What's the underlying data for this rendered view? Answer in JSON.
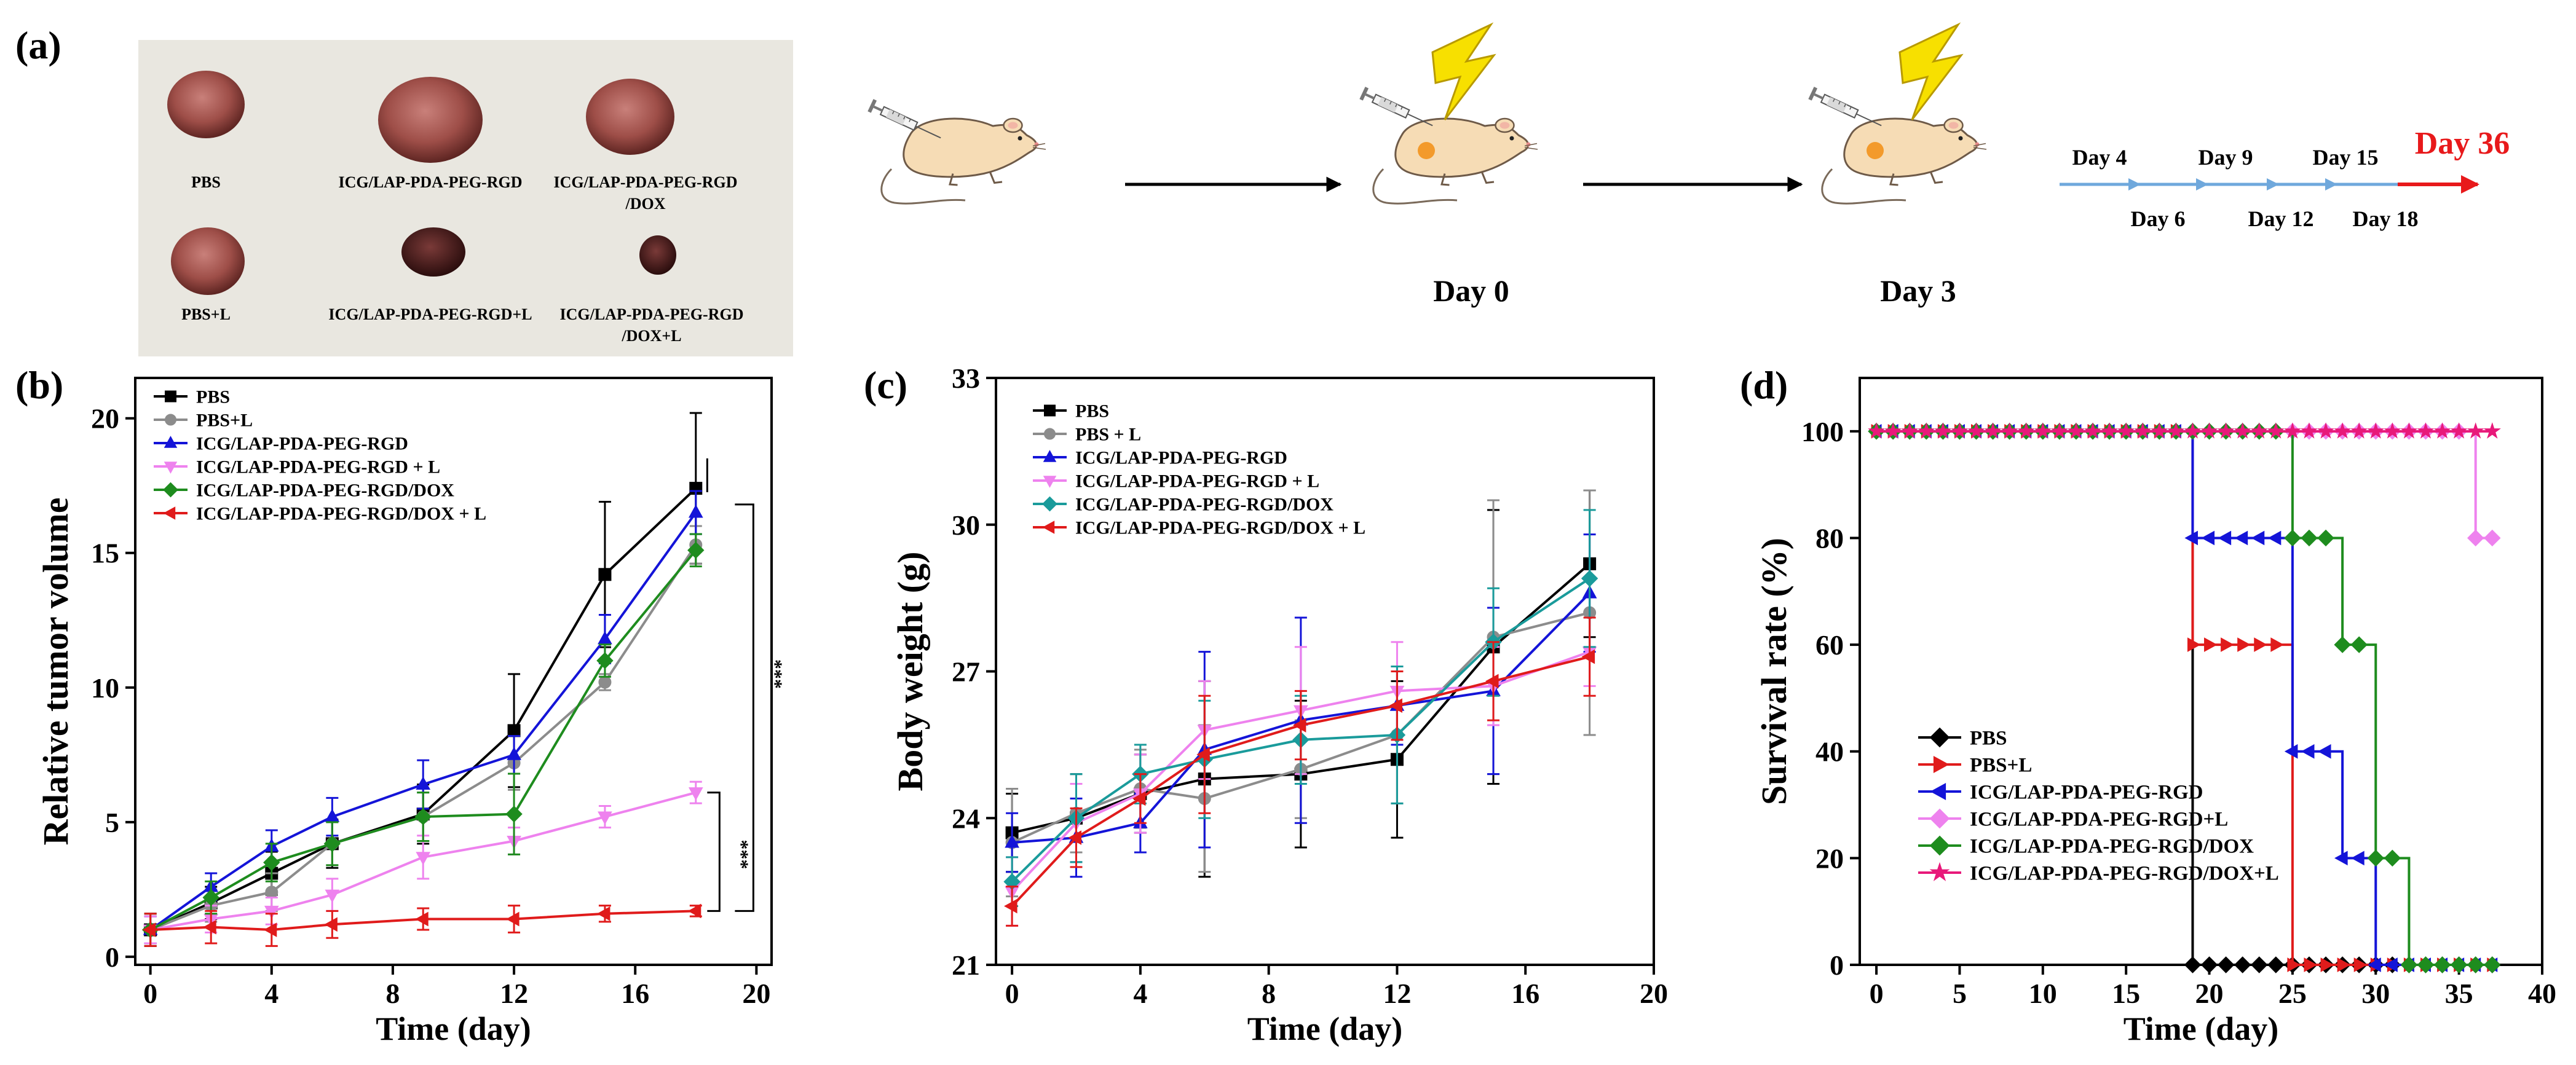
{
  "panel_labels": {
    "a": "(a)",
    "b": "(b)",
    "c": "(c)",
    "d": "(d)"
  },
  "photo": {
    "labels": [
      "PBS",
      "ICG/LAP-PDA-PEG-RGD",
      "ICG/LAP-PDA-PEG-RGD",
      "/DOX",
      "PBS+L",
      "ICG/LAP-PDA-PEG-RGD+L",
      "ICG/LAP-PDA-PEG-RGD",
      "/DOX+L"
    ]
  },
  "schedule": {
    "day0": "Day 0",
    "day3": "Day 3",
    "days_above": [
      "Day 4",
      "Day 9",
      "Day 15"
    ],
    "days_below": [
      "Day 6",
      "Day 12",
      "Day 18"
    ],
    "final_day": "Day 36",
    "colors": {
      "timeline": "#6fa8dc",
      "final": "#e8191b",
      "mouse": "#f6dcb5",
      "tumor": "#f39a2b",
      "bolt": "#f7e000"
    }
  },
  "chart_data": [
    {
      "type": "line",
      "id": "b",
      "title": "",
      "xlabel": "Time (day)",
      "ylabel": "Relative tumor volume",
      "xlim": [
        -0.5,
        20.5
      ],
      "ylim": [
        -0.3,
        21.5
      ],
      "xticks": [
        0,
        4,
        8,
        12,
        16,
        20
      ],
      "yticks": [
        0,
        5,
        10,
        15,
        20
      ],
      "x": [
        0,
        2,
        4,
        6,
        9,
        12,
        15,
        18
      ],
      "series": [
        {
          "name": "PBS",
          "color": "#000000",
          "marker": "square",
          "values": [
            1,
            2.0,
            3.1,
            4.2,
            5.3,
            8.4,
            14.2,
            17.4
          ],
          "err": [
            0.6,
            0.6,
            0.8,
            0.9,
            1.1,
            2.1,
            2.7,
            2.8
          ]
        },
        {
          "name": "PBS+L",
          "color": "#8c8c8c",
          "marker": "circle",
          "values": [
            1,
            1.9,
            2.4,
            4.2,
            5.2,
            7.2,
            10.2,
            15.3
          ],
          "err": [
            0.5,
            0.6,
            0.7,
            0.8,
            0.9,
            1.0,
            0.3,
            0.7
          ]
        },
        {
          "name": "ICG/LAP-PDA-PEG-RGD",
          "color": "#1414d8",
          "marker": "triangle",
          "values": [
            1,
            2.6,
            4.1,
            5.2,
            6.4,
            7.5,
            11.8,
            16.5
          ],
          "err": [
            0.5,
            0.5,
            0.6,
            0.7,
            0.9,
            0.7,
            0.9,
            0.8
          ]
        },
        {
          "name": "ICG/LAP-PDA-PEG-RGD + L",
          "color": "#ee82ee",
          "marker": "triangle-down",
          "values": [
            1,
            1.4,
            1.7,
            2.3,
            3.7,
            4.3,
            5.2,
            6.1
          ],
          "err": [
            0.5,
            0.5,
            0.5,
            0.6,
            0.8,
            0.5,
            0.4,
            0.4
          ]
        },
        {
          "name": "ICG/LAP-PDA-PEG-RGD/DOX",
          "color": "#1e8c1e",
          "marker": "diamond",
          "values": [
            1,
            2.2,
            3.5,
            4.2,
            5.2,
            5.3,
            11.0,
            15.1
          ],
          "err": [
            0.6,
            0.6,
            0.7,
            0.8,
            0.9,
            1.5,
            0.6,
            0.6
          ]
        },
        {
          "name": "ICG/LAP-PDA-PEG-RGD/DOX + L",
          "color": "#e01b1b",
          "marker": "triangle-left",
          "values": [
            1,
            1.1,
            1.0,
            1.2,
            1.4,
            1.4,
            1.6,
            1.7
          ],
          "err": [
            0.6,
            0.6,
            0.6,
            0.5,
            0.4,
            0.5,
            0.3,
            0.2
          ]
        }
      ],
      "significance": [
        "***",
        "***"
      ]
    },
    {
      "type": "line",
      "id": "c",
      "title": "",
      "xlabel": "Time (day)",
      "ylabel": "Body weight (g)",
      "xlim": [
        -0.5,
        20
      ],
      "ylim": [
        21,
        33
      ],
      "xticks": [
        0,
        4,
        8,
        12,
        16,
        20
      ],
      "yticks": [
        21,
        24,
        27,
        30,
        33
      ],
      "x": [
        0,
        2,
        4,
        6,
        9,
        12,
        15,
        18
      ],
      "series": [
        {
          "name": "PBS",
          "color": "#000000",
          "marker": "square",
          "values": [
            23.7,
            24.0,
            24.5,
            24.8,
            24.9,
            25.2,
            27.5,
            29.2
          ],
          "err": [
            0.8,
            0.9,
            0.8,
            2.0,
            1.5,
            1.6,
            2.8,
            1.5
          ]
        },
        {
          "name": "PBS + L",
          "color": "#8c8c8c",
          "marker": "circle",
          "values": [
            23.5,
            24.1,
            24.6,
            24.4,
            25.0,
            25.7,
            27.7,
            28.2
          ],
          "err": [
            1.1,
            0.8,
            0.8,
            1.5,
            1.0,
            1.4,
            2.8,
            2.5
          ]
        },
        {
          "name": "ICG/LAP-PDA-PEG-RGD",
          "color": "#1414d8",
          "marker": "triangle",
          "values": [
            23.5,
            23.6,
            23.9,
            25.4,
            26.0,
            26.3,
            26.6,
            28.6
          ],
          "err": [
            0.6,
            0.8,
            0.6,
            2.0,
            2.1,
            0.8,
            1.7,
            1.2
          ]
        },
        {
          "name": "ICG/LAP-PDA-PEG-RGD + L",
          "color": "#ee82ee",
          "marker": "triangle-down",
          "values": [
            22.5,
            23.9,
            24.5,
            25.8,
            26.2,
            26.6,
            26.7,
            27.4
          ],
          "err": [
            0.7,
            0.8,
            0.8,
            1.0,
            1.3,
            1.0,
            0.8,
            0.7
          ]
        },
        {
          "name": "ICG/LAP-PDA-PEG-RGD/DOX",
          "color": "#1a9b9b",
          "marker": "diamond",
          "values": [
            22.7,
            24.0,
            24.9,
            25.2,
            25.6,
            25.7,
            27.6,
            28.9
          ],
          "err": [
            0.5,
            0.9,
            0.6,
            1.2,
            0.9,
            1.4,
            1.1,
            1.4
          ]
        },
        {
          "name": "ICG/LAP-PDA-PEG-RGD/DOX + L",
          "color": "#e01b1b",
          "marker": "triangle-left",
          "values": [
            22.2,
            23.6,
            24.4,
            25.3,
            25.9,
            26.3,
            26.8,
            27.3
          ],
          "err": [
            0.4,
            0.6,
            0.5,
            1.2,
            0.7,
            0.7,
            0.8,
            0.8
          ]
        }
      ]
    },
    {
      "type": "line",
      "step": true,
      "id": "d",
      "title": "",
      "xlabel": "Time (day)",
      "ylabel": "Survival rate (%)",
      "xlim": [
        -1,
        40
      ],
      "ylim": [
        0,
        110
      ],
      "xticks": [
        0,
        5,
        10,
        15,
        20,
        25,
        30,
        35,
        40
      ],
      "yticks": [
        0,
        20,
        40,
        60,
        80,
        100
      ],
      "series": [
        {
          "name": "PBS",
          "color": "#000000",
          "marker": "diamond",
          "x": [
            0,
            19,
            19,
            37
          ],
          "values": [
            100,
            100,
            0,
            0
          ]
        },
        {
          "name": "PBS+L",
          "color": "#e01b1b",
          "marker": "triangle-right",
          "x": [
            0,
            19,
            19,
            25,
            25,
            37
          ],
          "values": [
            100,
            100,
            60,
            60,
            0,
            0
          ]
        },
        {
          "name": "ICG/LAP-PDA-PEG-RGD",
          "color": "#1414d8",
          "marker": "triangle-left",
          "x": [
            0,
            19,
            19,
            25,
            25,
            28,
            28,
            30,
            30,
            37
          ],
          "values": [
            100,
            100,
            80,
            80,
            40,
            40,
            20,
            20,
            0,
            0
          ]
        },
        {
          "name": "ICG/LAP-PDA-PEG-RGD+L",
          "color": "#ee82ee",
          "marker": "diamond",
          "x": [
            0,
            36,
            36,
            37
          ],
          "values": [
            100,
            100,
            80,
            80
          ]
        },
        {
          "name": "ICG/LAP-PDA-PEG-RGD/DOX",
          "color": "#1e8c1e",
          "marker": "diamond",
          "x": [
            0,
            25,
            25,
            28,
            28,
            30,
            30,
            32,
            32,
            37
          ],
          "values": [
            100,
            100,
            80,
            80,
            60,
            60,
            20,
            20,
            0,
            0
          ]
        },
        {
          "name": "ICG/LAP-PDA-PEG-RGD/DOX+L",
          "color": "#e8197a",
          "marker": "star",
          "x": [
            0,
            37
          ],
          "values": [
            100,
            100
          ]
        }
      ]
    }
  ]
}
